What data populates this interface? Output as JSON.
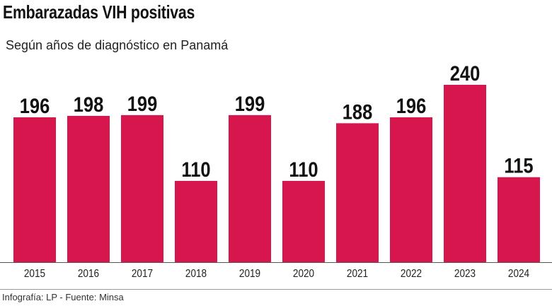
{
  "chart_data": {
    "type": "bar",
    "title": "Embarazadas VIH positivas",
    "subtitle": "Según años de diagnóstico en Panamá",
    "categories": [
      "2015",
      "2016",
      "2017",
      "2018",
      "2019",
      "2020",
      "2021",
      "2022",
      "2023",
      "2024"
    ],
    "values": [
      196,
      198,
      199,
      110,
      199,
      110,
      188,
      196,
      240,
      115
    ],
    "data_labels": [
      "196",
      "198",
      "199",
      "110",
      "199",
      "110",
      "188",
      "196",
      "240",
      "115"
    ],
    "ylim": [
      0,
      240
    ],
    "grid": false,
    "bar_color": "#d6164c",
    "source": "Infografía: LP - Fuente: Minsa"
  }
}
